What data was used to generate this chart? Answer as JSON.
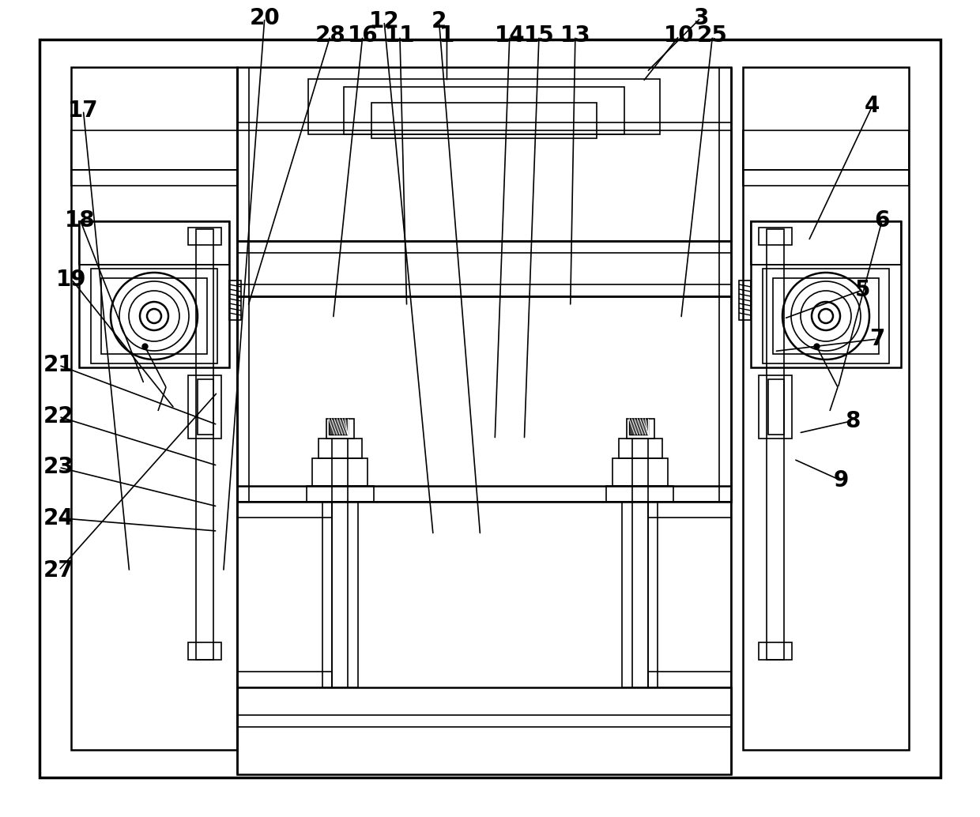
{
  "fig_width": 12.4,
  "fig_height": 10.34,
  "dpi": 100,
  "bg_color": "#ffffff",
  "lc": "#000000",
  "lw_thin": 1.2,
  "lw_med": 1.8,
  "lw_thick": 2.5,
  "label_fontsize": 20,
  "labels": [
    [
      1,
      0.456,
      0.044,
      0.456,
      0.1
    ],
    [
      2,
      0.448,
      0.026,
      0.49,
      0.655
    ],
    [
      3,
      0.715,
      0.022,
      0.66,
      0.088
    ],
    [
      4,
      0.89,
      0.13,
      0.825,
      0.295
    ],
    [
      5,
      0.88,
      0.355,
      0.8,
      0.39
    ],
    [
      6,
      0.9,
      0.27,
      0.855,
      0.475
    ],
    [
      7,
      0.895,
      0.415,
      0.79,
      0.43
    ],
    [
      8,
      0.87,
      0.515,
      0.815,
      0.53
    ],
    [
      9,
      0.858,
      0.588,
      0.81,
      0.562
    ],
    [
      10,
      0.693,
      0.044,
      0.656,
      0.1
    ],
    [
      11,
      0.408,
      0.044,
      0.415,
      0.375
    ],
    [
      12,
      0.392,
      0.026,
      0.442,
      0.655
    ],
    [
      13,
      0.587,
      0.044,
      0.582,
      0.375
    ],
    [
      14,
      0.52,
      0.044,
      0.505,
      0.538
    ],
    [
      15,
      0.55,
      0.044,
      0.535,
      0.538
    ],
    [
      16,
      0.37,
      0.044,
      0.34,
      0.39
    ],
    [
      17,
      0.085,
      0.135,
      0.132,
      0.7
    ],
    [
      18,
      0.082,
      0.27,
      0.147,
      0.47
    ],
    [
      19,
      0.073,
      0.342,
      0.178,
      0.5
    ],
    [
      20,
      0.27,
      0.022,
      0.228,
      0.7
    ],
    [
      21,
      0.06,
      0.447,
      0.222,
      0.52
    ],
    [
      22,
      0.06,
      0.51,
      0.222,
      0.57
    ],
    [
      23,
      0.06,
      0.572,
      0.222,
      0.62
    ],
    [
      24,
      0.06,
      0.634,
      0.222,
      0.65
    ],
    [
      25,
      0.727,
      0.044,
      0.695,
      0.39
    ],
    [
      27,
      0.06,
      0.698,
      0.222,
      0.48
    ],
    [
      28,
      0.337,
      0.044,
      0.253,
      0.375
    ]
  ]
}
